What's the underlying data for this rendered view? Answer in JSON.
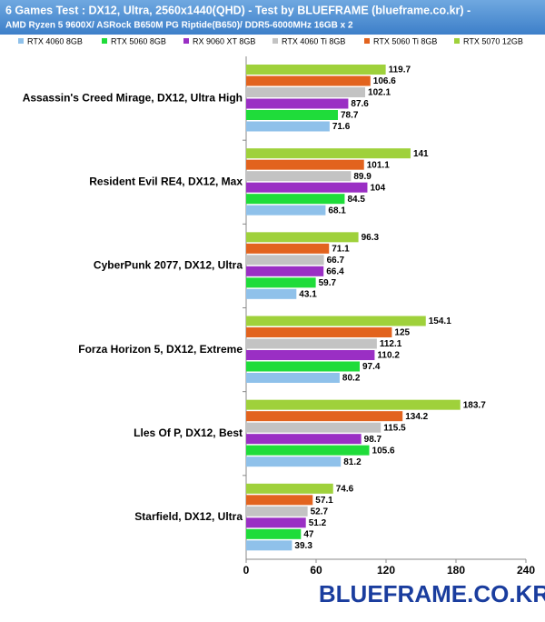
{
  "chart_data": {
    "type": "hbar",
    "title": "6 Games Test : DX12, Ultra, 2560x1440(QHD) - Test by BLUEFRAME (blueframe.co.kr) -",
    "subtitle": "AMD Ryzen 5 9600X/ ASRock B650M PG Riptide(B650)/ DDR5-6000MHz 16GB x 2",
    "watermark": "BLUEFRAME.CO.KR",
    "categories": [
      "Assassin's Creed Mirage, DX12, Ultra High",
      "Resident Evil RE4, DX12, Max",
      "CyberPunk 2077, DX12, Ultra",
      "Forza Horizon 5, DX12, Extreme",
      "Lles Of P, DX12, Best",
      "Starfield, DX12, Ultra"
    ],
    "series": [
      {
        "name": "RTX 4060 8GB",
        "color": "#8fc1ea",
        "values": [
          71.6,
          68.1,
          43.1,
          80.2,
          81.2,
          39.3
        ]
      },
      {
        "name": "RTX 5060 8GB",
        "color": "#1fdc3a",
        "values": [
          78.7,
          84.5,
          59.7,
          97.4,
          105.6,
          47
        ]
      },
      {
        "name": "RX 9060 XT 8GB",
        "color": "#9a2fc4",
        "values": [
          87.6,
          104,
          66.4,
          110.2,
          98.7,
          51.2
        ]
      },
      {
        "name": "RTX 4060 Ti 8GB",
        "color": "#c3c3c3",
        "values": [
          102.1,
          89.9,
          66.7,
          112.1,
          115.5,
          52.7
        ]
      },
      {
        "name": "RTX 5060 Ti 8GB",
        "color": "#e2631e",
        "values": [
          106.6,
          101.1,
          71.1,
          125,
          134.2,
          57.1
        ]
      },
      {
        "name": "RTX 5070 12GB",
        "color": "#9fd13b",
        "values": [
          119.7,
          141,
          96.3,
          154.1,
          183.7,
          74.6
        ]
      }
    ],
    "xlim": [
      0,
      240
    ],
    "xticks": [
      0,
      60,
      120,
      180,
      240
    ]
  }
}
